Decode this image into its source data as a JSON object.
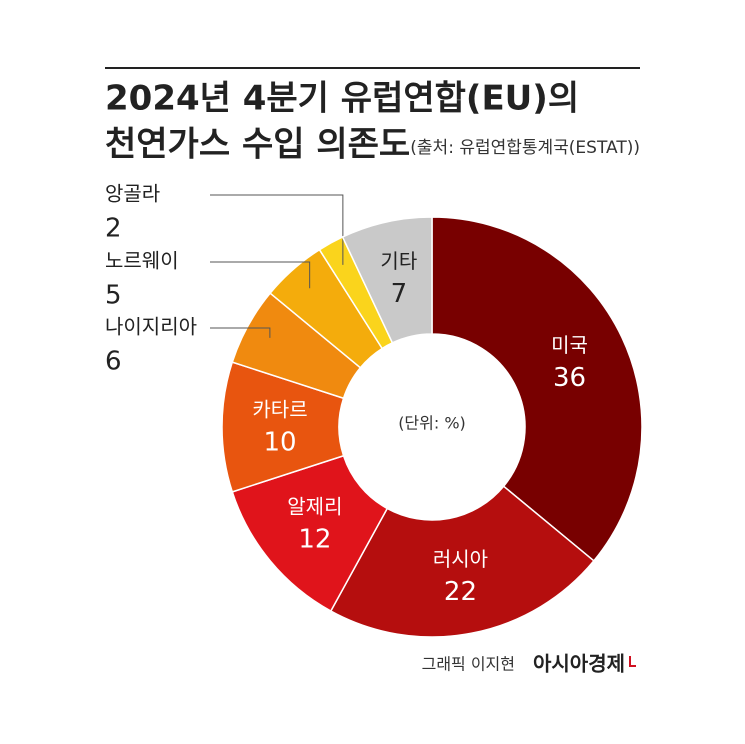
{
  "chart_data": {
    "type": "donut",
    "title_lines": [
      "2024년 4분기 유럽연합(EU)의",
      "천연가스 수입 의존도"
    ],
    "source": "(출처: 유럽연합통계국(ESTAT))",
    "center_label": "(단위: %)",
    "categories": [
      "미국",
      "러시아",
      "알제리",
      "카타르",
      "나이지리아",
      "노르웨이",
      "앙골라",
      "기타"
    ],
    "values": [
      36,
      22,
      12,
      10,
      6,
      5,
      2,
      7
    ],
    "colors": [
      "#780000",
      "#b50e0e",
      "#e0141b",
      "#e8550f",
      "#f08a0f",
      "#f4ac0c",
      "#fad41c",
      "#c9c9c9"
    ],
    "credit": "그래픽 이지현",
    "publisher": "아시아경제"
  }
}
